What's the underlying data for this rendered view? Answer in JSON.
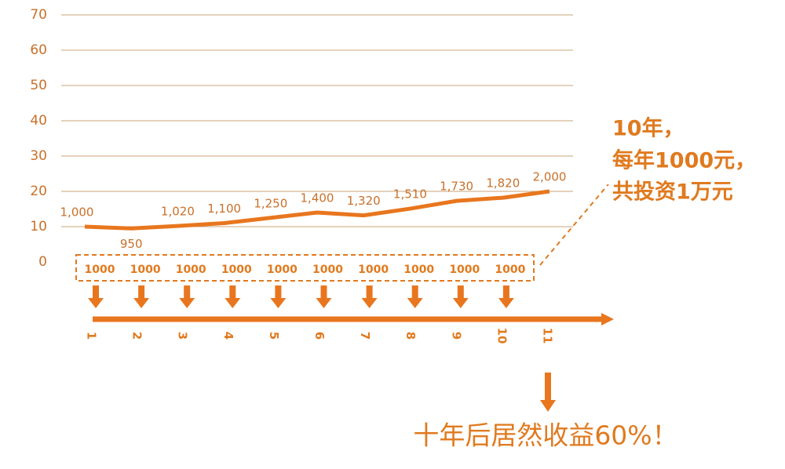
{
  "chart_data": {
    "type": "line",
    "categories": [
      "1",
      "2",
      "3",
      "4",
      "5",
      "6",
      "7",
      "8",
      "9",
      "10",
      "11"
    ],
    "series": [
      {
        "color": "#e8761e",
        "values": [
          10,
          9.5,
          10.2,
          11,
          12.5,
          14,
          13.2,
          15.1,
          17.3,
          18.2,
          20
        ],
        "value_labels": [
          "1,000",
          "950",
          "1,020",
          "1,100",
          "1,250",
          "1,400",
          "1,320",
          "1,510",
          "1,730",
          "1,820",
          "2,000"
        ]
      }
    ],
    "ylim": [
      0,
      70
    ],
    "yticks": [
      0,
      10,
      20,
      30,
      40,
      50,
      60,
      70
    ],
    "grid": true,
    "deposits": [
      1000,
      1000,
      1000,
      1000,
      1000,
      1000,
      1000,
      1000,
      1000,
      1000
    ],
    "annotation_lines": [
      "10年，",
      "每年1000元，",
      "共投资1万元"
    ],
    "conclusion": "十年后居然收益60%！"
  }
}
